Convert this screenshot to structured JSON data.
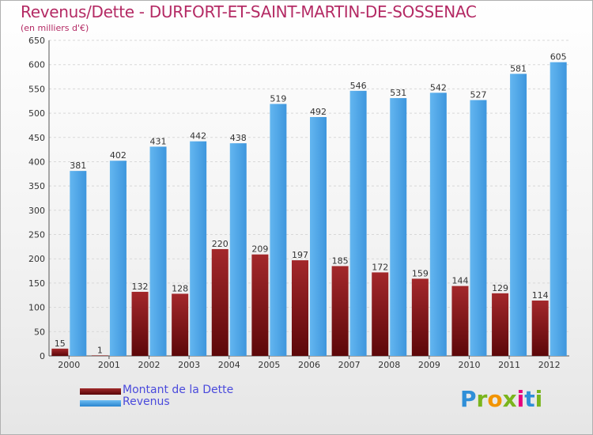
{
  "chart_data": {
    "type": "bar",
    "title": "Revenus/Dette - DURFORT-ET-SAINT-MARTIN-DE-SOSSENAC",
    "subtitle": "(en milliers d'€)",
    "categories": [
      "2000",
      "2001",
      "2002",
      "2003",
      "2004",
      "2005",
      "2006",
      "2007",
      "2008",
      "2009",
      "2010",
      "2011",
      "2012"
    ],
    "series": [
      {
        "name": "Montant de la Dette",
        "color": "#7a0f12",
        "values": [
          15,
          1,
          132,
          128,
          220,
          209,
          197,
          185,
          172,
          159,
          144,
          129,
          114
        ]
      },
      {
        "name": "Revenus",
        "color": "#3d9be3",
        "values": [
          381,
          402,
          431,
          442,
          438,
          519,
          492,
          546,
          531,
          542,
          527,
          581,
          605
        ]
      }
    ],
    "ylim": [
      0,
      650
    ],
    "yticks": [
      0,
      50,
      100,
      150,
      200,
      250,
      300,
      350,
      400,
      450,
      500,
      550,
      600,
      650
    ],
    "grid": true,
    "legend_position": "bottom-left"
  },
  "branding": {
    "logo_letters": [
      "P",
      "r",
      "o",
      "x",
      "i",
      "t",
      "i"
    ],
    "logo_colors": [
      "#2f8fd8",
      "#7ab51d",
      "#f29400",
      "#7ab51d",
      "#e6007e",
      "#2f8fd8",
      "#7ab51d"
    ]
  }
}
